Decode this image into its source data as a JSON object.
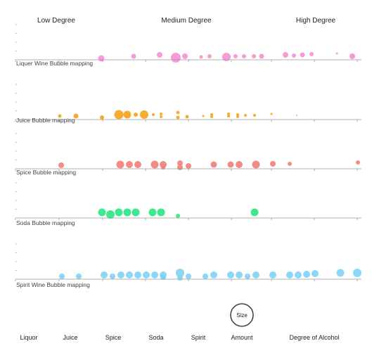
{
  "chart_data": {
    "type": "scatter",
    "title": "",
    "degree_headers": [
      "Low Degree",
      "Medium Degree",
      "High Degree"
    ],
    "series": [
      {
        "name": "Liquer Wine Bubble mapping",
        "color": "#f78fd6",
        "points": [
          [
            144,
            83,
            4.5
          ],
          [
            190,
            80,
            3.5
          ],
          [
            227,
            78,
            4
          ],
          [
            250,
            82,
            7
          ],
          [
            263,
            80,
            4
          ],
          [
            286,
            81,
            2.5
          ],
          [
            298,
            80,
            3
          ],
          [
            322,
            81,
            6
          ],
          [
            335,
            80,
            3
          ],
          [
            347,
            80,
            3
          ],
          [
            361,
            80,
            3
          ],
          [
            372,
            80,
            3.5
          ],
          [
            406,
            78,
            4
          ],
          [
            418,
            79,
            3
          ],
          [
            430,
            78,
            3.5
          ],
          [
            443,
            77,
            3
          ],
          [
            479,
            76,
            1.5
          ],
          [
            501,
            80,
            4
          ]
        ]
      },
      {
        "name": "Juice Bubble mapping",
        "color": "#f5a31a",
        "points": [
          [
            85,
            165,
            2.5
          ],
          [
            108,
            165,
            3.5
          ],
          [
            145,
            167,
            3
          ],
          [
            169,
            163,
            6.5
          ],
          [
            181,
            163,
            5.5
          ],
          [
            193,
            163,
            3
          ],
          [
            205,
            163,
            6
          ],
          [
            218,
            163,
            2
          ],
          [
            229,
            162,
            2
          ],
          [
            229,
            166,
            2
          ],
          [
            253,
            160,
            2.5
          ],
          [
            253,
            167,
            2.5
          ],
          [
            266,
            166,
            2.5
          ],
          [
            289,
            165,
            1.5
          ],
          [
            301,
            163,
            2
          ],
          [
            301,
            166,
            2
          ],
          [
            325,
            162,
            2
          ],
          [
            325,
            165,
            2
          ],
          [
            338,
            163,
            2
          ],
          [
            338,
            166,
            2
          ],
          [
            349,
            164,
            2
          ],
          [
            362,
            164,
            2
          ],
          [
            386,
            162,
            1.5
          ],
          [
            422,
            164,
            1
          ]
        ]
      },
      {
        "name": "Spice Bubble mapping",
        "color": "#f2807a",
        "points": [
          [
            87,
            235,
            4
          ],
          [
            171,
            234,
            5.5
          ],
          [
            184,
            234,
            5
          ],
          [
            196,
            234,
            5
          ],
          [
            220,
            234,
            5.5
          ],
          [
            232,
            234,
            5
          ],
          [
            232,
            238,
            3
          ],
          [
            256,
            232,
            4
          ],
          [
            256,
            238,
            4
          ],
          [
            268,
            236,
            4
          ],
          [
            304,
            234,
            4.5
          ],
          [
            328,
            234,
            4.5
          ],
          [
            340,
            234,
            5
          ],
          [
            364,
            234,
            5.5
          ],
          [
            388,
            233,
            4
          ],
          [
            412,
            233,
            3
          ],
          [
            509,
            231,
            3
          ]
        ]
      },
      {
        "name": "Soda Bubble mapping",
        "color": "#28e585",
        "points": [
          [
            145,
            302,
            5.5
          ],
          [
            157,
            305,
            6
          ],
          [
            169,
            302,
            5.5
          ],
          [
            181,
            302,
            5.5
          ],
          [
            193,
            302,
            5.5
          ],
          [
            217,
            302,
            5.5
          ],
          [
            229,
            302,
            5.5
          ],
          [
            253,
            307,
            3
          ],
          [
            362,
            302,
            5.5
          ]
        ]
      },
      {
        "name": "Spirit Wine Bubble mapping",
        "color": "#7dd3f7",
        "points": [
          [
            88,
            393,
            4
          ],
          [
            112,
            393,
            4
          ],
          [
            148,
            391,
            5
          ],
          [
            160,
            393,
            4
          ],
          [
            172,
            391,
            5
          ],
          [
            184,
            391,
            5
          ],
          [
            196,
            391,
            5
          ],
          [
            208,
            391,
            5
          ],
          [
            220,
            391,
            5
          ],
          [
            232,
            391,
            5
          ],
          [
            232,
            394,
            4
          ],
          [
            256,
            388,
            6
          ],
          [
            256,
            395,
            4
          ],
          [
            268,
            393,
            4
          ],
          [
            292,
            393,
            4
          ],
          [
            304,
            391,
            5
          ],
          [
            328,
            391,
            5
          ],
          [
            340,
            391,
            5
          ],
          [
            352,
            393,
            4
          ],
          [
            364,
            391,
            5
          ],
          [
            388,
            391,
            5
          ],
          [
            412,
            391,
            5
          ],
          [
            424,
            391,
            5
          ],
          [
            436,
            390,
            5
          ],
          [
            448,
            389,
            5
          ],
          [
            484,
            388,
            5.5
          ],
          [
            508,
            388,
            6
          ]
        ]
      }
    ],
    "size_legend": "Size",
    "footer_labels": [
      "Liquor",
      "Juice",
      "Spice",
      "Soda",
      "Spirit",
      "Amount",
      "Degree of Alcohol"
    ]
  }
}
